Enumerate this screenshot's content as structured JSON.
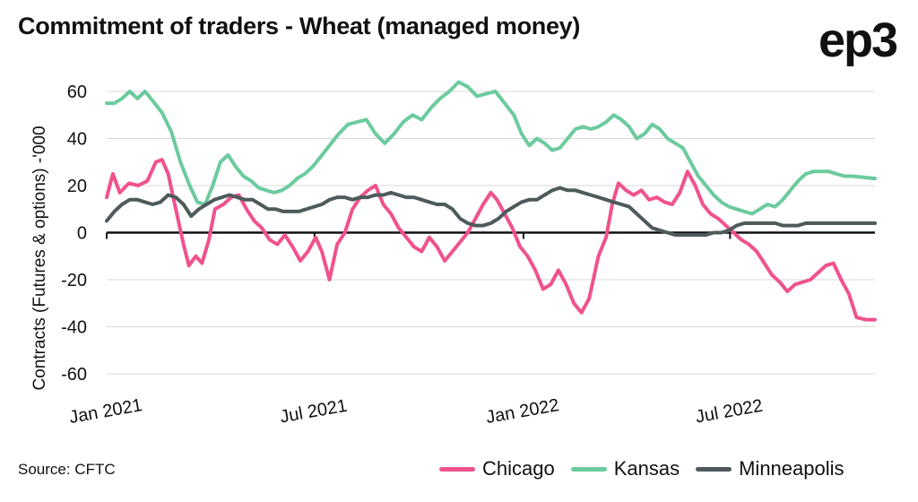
{
  "header": {
    "title": "Commitment of traders - Wheat (managed money)",
    "logo": "ep3"
  },
  "footer": {
    "source": "Source: CFTC"
  },
  "chart_data": {
    "type": "line",
    "title": "Commitment of traders - Wheat (managed money)",
    "ylabel": "Contracts (Futures & options) -'000",
    "xlabel": "",
    "ylim": [
      -60,
      60
    ],
    "yticks": [
      60,
      40,
      20,
      0,
      -20,
      -40,
      -60
    ],
    "xticks": [
      {
        "label": "Jan 2021",
        "t": 0.0
      },
      {
        "label": "Jul 2021",
        "t": 0.2705
      },
      {
        "label": "Jan 2022",
        "t": 0.5425
      },
      {
        "label": "Jul 2022",
        "t": 0.8114
      }
    ],
    "grid": true,
    "legend": "bottom-right",
    "colors": {
      "Chicago": "#f0528d",
      "Kansas": "#6ccb9e",
      "Minneapolis": "#4e5a5b"
    },
    "series": [
      {
        "name": "Chicago",
        "points": [
          [
            0.0,
            15
          ],
          [
            0.008,
            25
          ],
          [
            0.017,
            17
          ],
          [
            0.029,
            21
          ],
          [
            0.041,
            20
          ],
          [
            0.053,
            22
          ],
          [
            0.064,
            30
          ],
          [
            0.072,
            31
          ],
          [
            0.08,
            25
          ],
          [
            0.09,
            10
          ],
          [
            0.1,
            -5
          ],
          [
            0.107,
            -14
          ],
          [
            0.116,
            -10
          ],
          [
            0.124,
            -13
          ],
          [
            0.133,
            -3
          ],
          [
            0.141,
            10
          ],
          [
            0.152,
            12
          ],
          [
            0.162,
            15
          ],
          [
            0.172,
            16
          ],
          [
            0.182,
            10
          ],
          [
            0.192,
            5
          ],
          [
            0.202,
            2
          ],
          [
            0.212,
            -3
          ],
          [
            0.222,
            -5
          ],
          [
            0.232,
            -1
          ],
          [
            0.242,
            -6
          ],
          [
            0.252,
            -12
          ],
          [
            0.262,
            -8
          ],
          [
            0.272,
            -2
          ],
          [
            0.28,
            -8
          ],
          [
            0.29,
            -20
          ],
          [
            0.3,
            -5
          ],
          [
            0.31,
            0
          ],
          [
            0.32,
            10
          ],
          [
            0.33,
            15
          ],
          [
            0.34,
            18
          ],
          [
            0.35,
            20
          ],
          [
            0.36,
            12
          ],
          [
            0.37,
            8
          ],
          [
            0.38,
            2
          ],
          [
            0.39,
            -2
          ],
          [
            0.4,
            -6
          ],
          [
            0.41,
            -8
          ],
          [
            0.42,
            -2
          ],
          [
            0.43,
            -6
          ],
          [
            0.44,
            -12
          ],
          [
            0.45,
            -8
          ],
          [
            0.46,
            -4
          ],
          [
            0.47,
            0
          ],
          [
            0.48,
            6
          ],
          [
            0.49,
            12
          ],
          [
            0.5,
            17
          ],
          [
            0.508,
            14
          ],
          [
            0.518,
            8
          ],
          [
            0.528,
            2
          ],
          [
            0.538,
            -6
          ],
          [
            0.548,
            -10
          ],
          [
            0.558,
            -16
          ],
          [
            0.568,
            -24
          ],
          [
            0.578,
            -22
          ],
          [
            0.588,
            -16
          ],
          [
            0.598,
            -22
          ],
          [
            0.608,
            -30
          ],
          [
            0.618,
            -34
          ],
          [
            0.628,
            -28
          ],
          [
            0.64,
            -10
          ],
          [
            0.65,
            -2
          ],
          [
            0.658,
            12
          ],
          [
            0.666,
            21
          ],
          [
            0.676,
            18
          ],
          [
            0.686,
            16
          ],
          [
            0.696,
            18
          ],
          [
            0.706,
            14
          ],
          [
            0.716,
            15
          ],
          [
            0.726,
            13
          ],
          [
            0.736,
            12
          ],
          [
            0.746,
            17
          ],
          [
            0.756,
            26
          ],
          [
            0.766,
            20
          ],
          [
            0.776,
            12
          ],
          [
            0.786,
            8
          ],
          [
            0.796,
            6
          ],
          [
            0.806,
            3
          ],
          [
            0.816,
            0
          ],
          [
            0.826,
            -3
          ],
          [
            0.836,
            -5
          ],
          [
            0.846,
            -8
          ],
          [
            0.856,
            -13
          ],
          [
            0.866,
            -18
          ],
          [
            0.876,
            -21
          ],
          [
            0.886,
            -25
          ],
          [
            0.896,
            -22
          ],
          [
            0.906,
            -21
          ],
          [
            0.916,
            -20
          ],
          [
            0.926,
            -17
          ],
          [
            0.936,
            -14
          ],
          [
            0.946,
            -13
          ],
          [
            0.956,
            -20
          ],
          [
            0.966,
            -26
          ],
          [
            0.976,
            -36
          ],
          [
            0.988,
            -37
          ],
          [
            1.0,
            -37
          ]
        ]
      },
      {
        "name": "Kansas",
        "points": [
          [
            0.0,
            55
          ],
          [
            0.01,
            55
          ],
          [
            0.02,
            57
          ],
          [
            0.03,
            60
          ],
          [
            0.04,
            57
          ],
          [
            0.05,
            60
          ],
          [
            0.06,
            56
          ],
          [
            0.072,
            51
          ],
          [
            0.084,
            43
          ],
          [
            0.096,
            30
          ],
          [
            0.108,
            20
          ],
          [
            0.118,
            13
          ],
          [
            0.128,
            12
          ],
          [
            0.138,
            20
          ],
          [
            0.148,
            30
          ],
          [
            0.158,
            33
          ],
          [
            0.168,
            28
          ],
          [
            0.178,
            24
          ],
          [
            0.188,
            22
          ],
          [
            0.198,
            19
          ],
          [
            0.208,
            18
          ],
          [
            0.218,
            17
          ],
          [
            0.228,
            18
          ],
          [
            0.238,
            20
          ],
          [
            0.248,
            23
          ],
          [
            0.258,
            25
          ],
          [
            0.268,
            28
          ],
          [
            0.278,
            32
          ],
          [
            0.29,
            37
          ],
          [
            0.302,
            42
          ],
          [
            0.314,
            46
          ],
          [
            0.326,
            47
          ],
          [
            0.338,
            48
          ],
          [
            0.35,
            42
          ],
          [
            0.362,
            38
          ],
          [
            0.374,
            42
          ],
          [
            0.386,
            47
          ],
          [
            0.398,
            50
          ],
          [
            0.41,
            48
          ],
          [
            0.422,
            53
          ],
          [
            0.434,
            57
          ],
          [
            0.446,
            60
          ],
          [
            0.458,
            64
          ],
          [
            0.47,
            62
          ],
          [
            0.482,
            58
          ],
          [
            0.494,
            59
          ],
          [
            0.506,
            60
          ],
          [
            0.518,
            55
          ],
          [
            0.53,
            50
          ],
          [
            0.54,
            42
          ],
          [
            0.55,
            37
          ],
          [
            0.56,
            40
          ],
          [
            0.57,
            38
          ],
          [
            0.58,
            35
          ],
          [
            0.59,
            36
          ],
          [
            0.6,
            40
          ],
          [
            0.61,
            44
          ],
          [
            0.62,
            45
          ],
          [
            0.63,
            44
          ],
          [
            0.64,
            45
          ],
          [
            0.65,
            47
          ],
          [
            0.66,
            50
          ],
          [
            0.67,
            48
          ],
          [
            0.68,
            45
          ],
          [
            0.69,
            40
          ],
          [
            0.7,
            42
          ],
          [
            0.71,
            46
          ],
          [
            0.72,
            44
          ],
          [
            0.73,
            40
          ],
          [
            0.74,
            38
          ],
          [
            0.75,
            36
          ],
          [
            0.76,
            30
          ],
          [
            0.77,
            24
          ],
          [
            0.78,
            20
          ],
          [
            0.79,
            16
          ],
          [
            0.8,
            13
          ],
          [
            0.81,
            11
          ],
          [
            0.82,
            10
          ],
          [
            0.83,
            9
          ],
          [
            0.84,
            8
          ],
          [
            0.85,
            10
          ],
          [
            0.86,
            12
          ],
          [
            0.87,
            11
          ],
          [
            0.88,
            14
          ],
          [
            0.89,
            18
          ],
          [
            0.9,
            22
          ],
          [
            0.91,
            25
          ],
          [
            0.92,
            26
          ],
          [
            0.93,
            26
          ],
          [
            0.94,
            26
          ],
          [
            0.95,
            25
          ],
          [
            0.96,
            24
          ],
          [
            0.97,
            24
          ],
          [
            1.0,
            23
          ]
        ]
      },
      {
        "name": "Minneapolis",
        "points": [
          [
            0.0,
            5
          ],
          [
            0.01,
            9
          ],
          [
            0.02,
            12
          ],
          [
            0.03,
            14
          ],
          [
            0.04,
            14
          ],
          [
            0.05,
            13
          ],
          [
            0.06,
            12
          ],
          [
            0.07,
            13
          ],
          [
            0.08,
            16
          ],
          [
            0.09,
            15
          ],
          [
            0.1,
            12
          ],
          [
            0.11,
            7
          ],
          [
            0.12,
            10
          ],
          [
            0.13,
            12
          ],
          [
            0.14,
            14
          ],
          [
            0.15,
            15
          ],
          [
            0.16,
            16
          ],
          [
            0.17,
            15
          ],
          [
            0.18,
            14
          ],
          [
            0.19,
            14
          ],
          [
            0.2,
            12
          ],
          [
            0.21,
            10
          ],
          [
            0.22,
            10
          ],
          [
            0.23,
            9
          ],
          [
            0.24,
            9
          ],
          [
            0.25,
            9
          ],
          [
            0.26,
            10
          ],
          [
            0.27,
            11
          ],
          [
            0.28,
            12
          ],
          [
            0.29,
            14
          ],
          [
            0.3,
            15
          ],
          [
            0.31,
            15
          ],
          [
            0.32,
            14
          ],
          [
            0.33,
            15
          ],
          [
            0.34,
            15
          ],
          [
            0.35,
            16
          ],
          [
            0.36,
            16
          ],
          [
            0.37,
            17
          ],
          [
            0.38,
            16
          ],
          [
            0.39,
            15
          ],
          [
            0.4,
            15
          ],
          [
            0.41,
            14
          ],
          [
            0.42,
            13
          ],
          [
            0.43,
            12
          ],
          [
            0.44,
            12
          ],
          [
            0.45,
            10
          ],
          [
            0.46,
            6
          ],
          [
            0.47,
            4
          ],
          [
            0.48,
            3
          ],
          [
            0.49,
            3
          ],
          [
            0.5,
            4
          ],
          [
            0.51,
            6
          ],
          [
            0.52,
            9
          ],
          [
            0.53,
            11
          ],
          [
            0.54,
            13
          ],
          [
            0.55,
            14
          ],
          [
            0.56,
            14
          ],
          [
            0.57,
            16
          ],
          [
            0.58,
            18
          ],
          [
            0.59,
            19
          ],
          [
            0.6,
            18
          ],
          [
            0.61,
            18
          ],
          [
            0.62,
            17
          ],
          [
            0.63,
            16
          ],
          [
            0.64,
            15
          ],
          [
            0.65,
            14
          ],
          [
            0.66,
            13
          ],
          [
            0.67,
            12
          ],
          [
            0.68,
            11
          ],
          [
            0.69,
            8
          ],
          [
            0.7,
            5
          ],
          [
            0.71,
            2
          ],
          [
            0.72,
            1
          ],
          [
            0.73,
            0
          ],
          [
            0.74,
            -1
          ],
          [
            0.75,
            -1
          ],
          [
            0.76,
            -1
          ],
          [
            0.77,
            -1
          ],
          [
            0.78,
            -1
          ],
          [
            0.79,
            0
          ],
          [
            0.8,
            0
          ],
          [
            0.81,
            1
          ],
          [
            0.82,
            3
          ],
          [
            0.83,
            4
          ],
          [
            0.84,
            4
          ],
          [
            0.85,
            4
          ],
          [
            0.86,
            4
          ],
          [
            0.87,
            4
          ],
          [
            0.88,
            3
          ],
          [
            0.89,
            3
          ],
          [
            0.9,
            3
          ],
          [
            0.91,
            4
          ],
          [
            0.92,
            4
          ],
          [
            0.93,
            4
          ],
          [
            0.94,
            4
          ],
          [
            0.95,
            4
          ],
          [
            0.96,
            4
          ],
          [
            0.97,
            4
          ],
          [
            1.0,
            4
          ]
        ]
      }
    ]
  }
}
